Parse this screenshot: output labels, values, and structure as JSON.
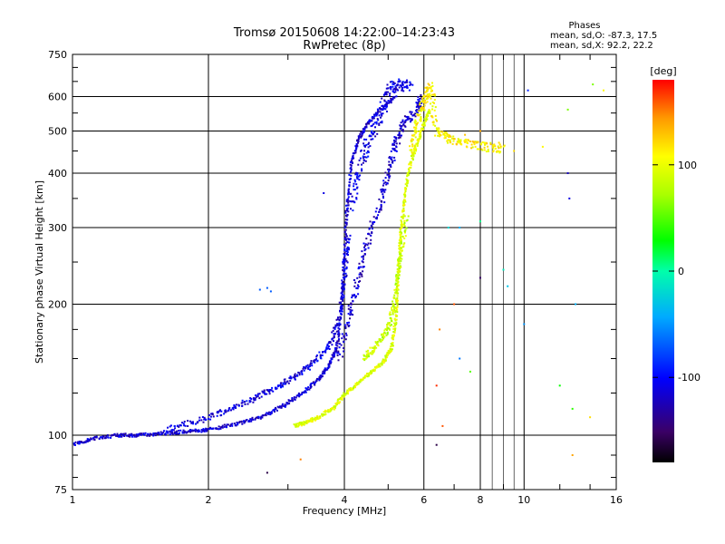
{
  "chart_data": {
    "type": "scatter",
    "title": "Tromsø 20150608 14:22:00–14:23:43",
    "subtitle": "RwPretec (8p)",
    "xlabel": "Frequency [MHz]",
    "ylabel": "Stationary phase Virtual Height [km]",
    "x_scale": "log",
    "y_scale": "log",
    "xlim": [
      1,
      16
    ],
    "ylim": [
      75,
      750
    ],
    "x_ticks": [
      1,
      2,
      4,
      6,
      8,
      10,
      16
    ],
    "x_tick_labels": [
      "1",
      "2",
      "4",
      "6",
      "8",
      "10",
      "16"
    ],
    "y_ticks": [
      75,
      100,
      200,
      300,
      400,
      500,
      600,
      750
    ],
    "y_tick_labels": [
      "75",
      "100",
      "200",
      "300",
      "400",
      "500",
      "600",
      "750"
    ],
    "grid": true,
    "phase_info": {
      "heading": "Phases",
      "line1": "mean, sd,O:  -87.3,  17.5",
      "line2": "mean, sd,X:   92.2,  22.2"
    },
    "colorbar": {
      "label": "[deg]",
      "min": -180,
      "max": 180,
      "ticks": [
        100,
        0,
        -100
      ],
      "tick_labels": [
        "100",
        "0",
        "-100"
      ]
    },
    "series": [
      {
        "traces": [
          {
            "phase": -115,
            "spread": 0.012,
            "points": [
              [
                1.0,
                95
              ],
              [
                1.1,
                98
              ],
              [
                1.25,
                100
              ],
              [
                1.4,
                100
              ],
              [
                1.6,
                101
              ],
              [
                1.8,
                102
              ],
              [
                2.0,
                103
              ],
              [
                2.3,
                106
              ],
              [
                2.6,
                110
              ],
              [
                2.9,
                116
              ],
              [
                3.2,
                124
              ],
              [
                3.5,
                134
              ],
              [
                3.7,
                144
              ],
              [
                3.85,
                160
              ],
              [
                3.95,
                200
              ],
              [
                4.0,
                260
              ],
              [
                4.05,
                330
              ],
              [
                4.15,
                420
              ],
              [
                4.3,
                480
              ],
              [
                4.5,
                520
              ],
              [
                4.8,
                560
              ],
              [
                5.2,
                600
              ]
            ]
          },
          {
            "phase": -112,
            "spread": 0.02,
            "points": [
              [
                1.6,
                103
              ],
              [
                1.9,
                108
              ],
              [
                2.2,
                114
              ],
              [
                2.5,
                121
              ],
              [
                2.8,
                128
              ],
              [
                3.1,
                136
              ],
              [
                3.4,
                146
              ],
              [
                3.7,
                160
              ],
              [
                3.9,
                185
              ],
              [
                4.0,
                230
              ],
              [
                4.1,
                290
              ]
            ]
          },
          {
            "phase": -118,
            "spread": 0.03,
            "points": [
              [
                3.9,
                150
              ],
              [
                4.1,
                190
              ],
              [
                4.3,
                230
              ],
              [
                4.5,
                280
              ],
              [
                4.8,
                340
              ],
              [
                5.0,
                400
              ],
              [
                5.2,
                470
              ],
              [
                5.4,
                520
              ],
              [
                5.8,
                560
              ],
              [
                5.9,
                600
              ]
            ]
          },
          {
            "phase": -108,
            "spread": 0.04,
            "points": [
              [
                4.1,
                330
              ],
              [
                4.3,
                400
              ],
              [
                4.5,
                470
              ],
              [
                4.8,
                540
              ],
              [
                5.0,
                620
              ],
              [
                5.3,
                640
              ],
              [
                5.6,
                630
              ]
            ]
          }
        ]
      },
      {
        "traces": [
          {
            "phase": 95,
            "spread": 0.012,
            "points": [
              [
                3.1,
                105
              ],
              [
                3.3,
                107
              ],
              [
                3.5,
                110
              ],
              [
                3.8,
                116
              ],
              [
                4.0,
                124
              ],
              [
                4.3,
                132
              ],
              [
                4.6,
                140
              ],
              [
                4.9,
                148
              ],
              [
                5.1,
                160
              ],
              [
                5.2,
                185
              ],
              [
                5.25,
                220
              ],
              [
                5.3,
                260
              ],
              [
                5.35,
                300
              ],
              [
                5.45,
                360
              ],
              [
                5.6,
                420
              ],
              [
                5.8,
                470
              ],
              [
                6.0,
                520
              ],
              [
                6.2,
                560
              ]
            ]
          },
          {
            "phase": 85,
            "spread": 0.02,
            "points": [
              [
                4.4,
                150
              ],
              [
                4.7,
                160
              ],
              [
                5.0,
                175
              ],
              [
                5.15,
                200
              ],
              [
                5.3,
                250
              ],
              [
                5.5,
                320
              ]
            ]
          },
          {
            "phase": 110,
            "spread": 0.03,
            "points": [
              [
                5.6,
                450
              ],
              [
                5.8,
                520
              ],
              [
                6.0,
                580
              ],
              [
                6.2,
                640
              ],
              [
                6.4,
                500
              ],
              [
                6.8,
                480
              ],
              [
                7.4,
                470
              ],
              [
                8.2,
                460
              ],
              [
                9.0,
                455
              ]
            ]
          }
        ]
      }
    ],
    "scattered_points": [
      [
        12.5,
        560,
        60
      ],
      [
        12.5,
        400,
        -120
      ],
      [
        12.6,
        350,
        -110
      ],
      [
        11.0,
        460,
        110
      ],
      [
        9.5,
        450,
        120
      ],
      [
        8.0,
        500,
        140
      ],
      [
        7.4,
        490,
        130
      ],
      [
        6.8,
        300,
        -20
      ],
      [
        7.2,
        300,
        -40
      ],
      [
        8.0,
        230,
        -150
      ],
      [
        8.0,
        310,
        5
      ],
      [
        9.0,
        240,
        -10
      ],
      [
        10.0,
        180,
        -50
      ],
      [
        9.2,
        220,
        -30
      ],
      [
        7.0,
        200,
        160
      ],
      [
        6.5,
        175,
        150
      ],
      [
        12.8,
        90,
        140
      ],
      [
        12.8,
        115,
        40
      ],
      [
        14.0,
        110,
        120
      ],
      [
        7.2,
        150,
        -60
      ],
      [
        7.6,
        140,
        50
      ],
      [
        6.4,
        130,
        170
      ],
      [
        2.7,
        82,
        -160
      ],
      [
        3.2,
        88,
        150
      ],
      [
        2.6,
        216,
        -70
      ],
      [
        2.7,
        218,
        -70
      ],
      [
        2.75,
        214,
        -70
      ],
      [
        3.6,
        360,
        -110
      ],
      [
        15.0,
        620,
        110
      ],
      [
        14.2,
        640,
        60
      ],
      [
        13.0,
        200,
        -40
      ],
      [
        12.0,
        130,
        30
      ],
      [
        10.2,
        620,
        -90
      ],
      [
        8.8,
        470,
        120
      ],
      [
        6.6,
        105,
        160
      ],
      [
        6.4,
        95,
        -160
      ]
    ]
  }
}
